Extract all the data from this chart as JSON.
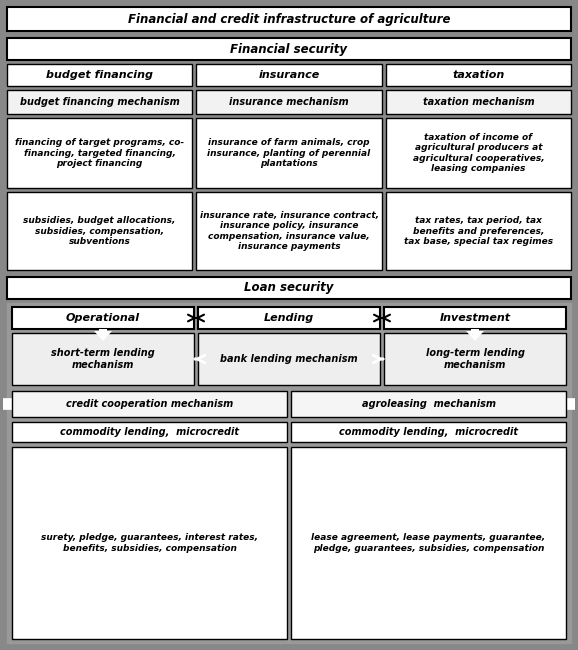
{
  "bg_color": "#888888",
  "box_bg": "#ffffff",
  "box_bg_light": "#f0f0f0",
  "box_border": "#000000",
  "text_color": "#000000",
  "title": "Financial and credit infrastructure of agriculture",
  "fin_security": "Financial security",
  "loan_security": "Loan security",
  "col1_head": "budget financing",
  "col2_head": "insurance",
  "col3_head": "taxation",
  "mech1": "budget financing mechanism",
  "mech2": "insurance mechanism",
  "mech3": "taxation mechanism",
  "obj1": "financing of target programs, co-\nfinancing, targeted financing,\nproject financing",
  "obj2": "insurance of farm animals, crop\ninsurance, planting of perennial\nplantations",
  "obj3": "taxation of income of\nagricultural producers at\nagricultural cooperatives,\nleasing companies",
  "inst1": "subsidies, budget allocations,\nsubsidies, compensation,\nsubventions",
  "inst2": "insurance rate, insurance contract,\ninsurance policy, insurance\ncompensation, insurance value,\ninsurance payments",
  "inst3": "tax rates, tax period, tax\nbenefits and preferences,\ntax base, special tax regimes",
  "loan_col1": "Operational",
  "loan_col2": "Lending",
  "loan_col3": "Investment",
  "mech_loan1": "short-term lending\nmechanism",
  "mech_loan2": "bank lending mechanism",
  "mech_loan3": "long-term lending\nmechanism",
  "coop_mech": "credit cooperation mechanism",
  "lease_mech": "agroleasing  mechanism",
  "comm1": "commodity lending,  microcredit",
  "comm2": "commodity lending,  microcredit",
  "tools1": "surety, pledge, guarantees, interest rates,\nbenefits, subsidies, compensation",
  "tools2": "lease agreement, lease payments, guarantee,\npledge, guarantees, subsidies, compensation"
}
